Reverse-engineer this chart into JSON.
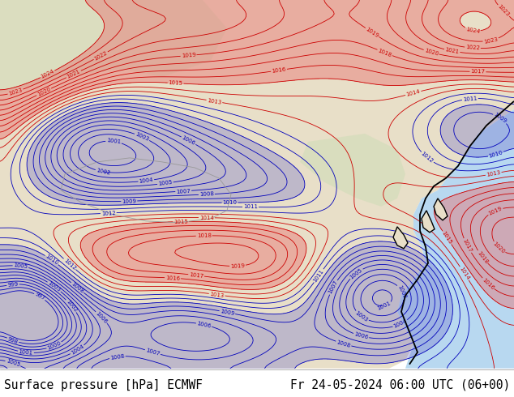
{
  "title_left": "Surface pressure [hPa] ECMWF",
  "title_right": "Fr 24-05-2024 06:00 UTC (06+00)",
  "ocean_color": "#b8d8f0",
  "land_color": "#e8dfc8",
  "land_green_color": "#d0ddb8",
  "bottom_bar_color": "#c8dff0",
  "bottom_text_color": "#000000",
  "font_size_bottom": 10.5,
  "contour_color_red": "#cc0000",
  "contour_color_blue": "#0000bb",
  "contour_color_black": "#000000",
  "red_fill_color": "#e87070",
  "blue_fill_color": "#7070cc",
  "figsize": [
    6.34,
    4.9
  ],
  "dpi": 100
}
